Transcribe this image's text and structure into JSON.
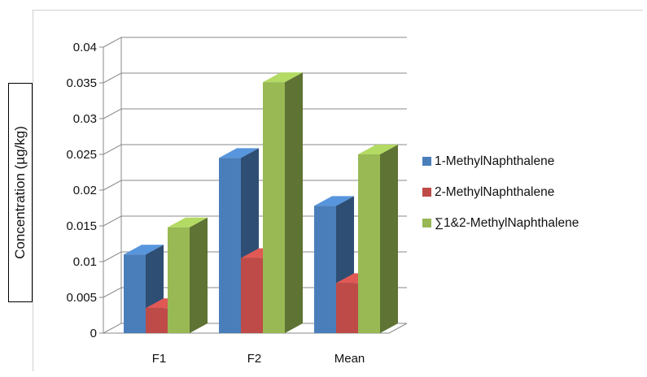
{
  "chart_data": {
    "type": "bar",
    "title": "",
    "xlabel": "",
    "ylabel": "Concentration (µg/kg)",
    "categories": [
      "F1",
      "F2",
      "Mean"
    ],
    "ylim": [
      0,
      0.04
    ],
    "yticks": [
      "0",
      "0.005",
      "0.01",
      "0.015",
      "0.02",
      "0.025",
      "0.03",
      "0.035",
      "0.04"
    ],
    "yticks_values": [
      0,
      0.005,
      0.01,
      0.015,
      0.02,
      0.025,
      0.03,
      0.035,
      0.04
    ],
    "grid": true,
    "legend_position": "right",
    "style": "3d-column",
    "series": [
      {
        "name": "1-MethylNaphthalene",
        "values": [
          0.011,
          0.0245,
          0.0178
        ],
        "color": "#4a7ebb"
      },
      {
        "name": "2-MethylNaphthalene",
        "values": [
          0.0035,
          0.0105,
          0.007
        ],
        "color": "#be4b48"
      },
      {
        "name": "∑1&2-MethylNaphthalene",
        "values": [
          0.0148,
          0.0351,
          0.025
        ],
        "color": "#98b954"
      }
    ]
  }
}
